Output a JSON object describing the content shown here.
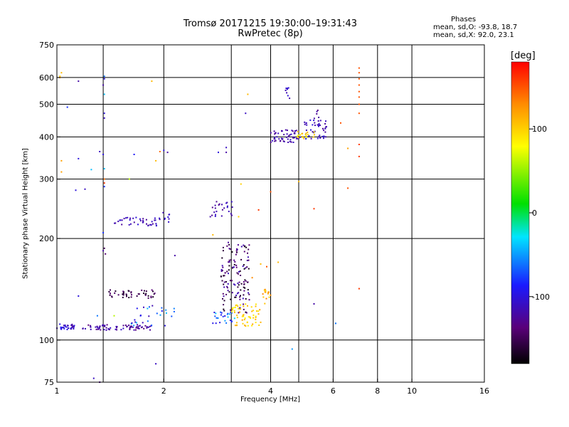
{
  "header": {
    "title_line1": "Tromsø 20171215 19:30:00–19:31:43",
    "title_line2": "RwPretec (8p)",
    "stats_title": "Phases",
    "stats_o": "mean, sd,O: -93.8, 18.7",
    "stats_x": "mean, sd,X:  92.0, 23.1"
  },
  "colorbar": {
    "label": "[deg]",
    "ticks": [
      {
        "value": 100,
        "label": "100"
      },
      {
        "value": 0,
        "label": "0"
      },
      {
        "value": -100,
        "label": "-100"
      }
    ],
    "range": [
      -180,
      180
    ]
  },
  "chart_data": {
    "type": "scatter",
    "xlabel": "Frequency [MHz]",
    "ylabel": "Stationary phase Virtual Height [km]",
    "xscale": "log",
    "yscale": "log",
    "xlim": [
      1,
      16
    ],
    "ylim": [
      75,
      750
    ],
    "xticks": [
      {
        "value": 1,
        "label": "1"
      },
      {
        "value": 2,
        "label": "2"
      },
      {
        "value": 4,
        "label": "4"
      },
      {
        "value": 6,
        "label": "6"
      },
      {
        "value": 8,
        "label": "8"
      },
      {
        "value": 10,
        "label": "10"
      },
      {
        "value": 16,
        "label": "16"
      }
    ],
    "yticks": [
      {
        "value": 75,
        "label": "75"
      },
      {
        "value": 100,
        "label": "100"
      },
      {
        "value": 200,
        "label": "200"
      },
      {
        "value": 300,
        "label": "300"
      },
      {
        "value": 400,
        "label": "400"
      },
      {
        "value": 500,
        "label": "500"
      },
      {
        "value": 600,
        "label": "600"
      },
      {
        "value": 750,
        "label": "750"
      }
    ],
    "grid_x": [
      1.35,
      2,
      3.1,
      4,
      4.8,
      6,
      8,
      10
    ],
    "grid_y": [
      100,
      200,
      300,
      400,
      500,
      600
    ],
    "clusters": [
      {
        "f": [
          1.0,
          1.12
        ],
        "h": [
          107,
          112
        ],
        "n": 30,
        "phase": [
          -125,
          -85
        ]
      },
      {
        "f": [
          1.18,
          1.85
        ],
        "h": [
          107,
          111
        ],
        "n": 75,
        "phase": [
          -140,
          -105
        ]
      },
      {
        "f": [
          1.62,
          2.15
        ],
        "h": [
          110,
          128
        ],
        "n": 25,
        "phase": [
          -120,
          -40
        ]
      },
      {
        "f": [
          1.4,
          1.9
        ],
        "h": [
          133,
          141
        ],
        "n": 45,
        "phase": [
          -170,
          -135
        ]
      },
      {
        "f": [
          1.45,
          1.95
        ],
        "h": [
          218,
          231
        ],
        "n": 40,
        "phase": [
          -130,
          -100
        ]
      },
      {
        "f": [
          1.98,
          2.08
        ],
        "h": [
          222,
          240
        ],
        "n": 8,
        "phase": [
          -120,
          -100
        ]
      },
      {
        "f": [
          2.7,
          3.15
        ],
        "h": [
          232,
          262
        ],
        "n": 25,
        "phase": [
          -130,
          -105
        ]
      },
      {
        "f": [
          2.75,
          3.25
        ],
        "h": [
          112,
          122
        ],
        "n": 25,
        "phase": [
          -100,
          -30
        ]
      },
      {
        "f": [
          2.9,
          3.5
        ],
        "h": [
          120,
          195
        ],
        "n": 130,
        "phase": [
          -175,
          -110
        ]
      },
      {
        "f": [
          3.1,
          3.75
        ],
        "h": [
          110,
          128
        ],
        "n": 60,
        "phase": [
          80,
          120
        ]
      },
      {
        "f": [
          3.8,
          4.0
        ],
        "h": [
          128,
          142
        ],
        "n": 14,
        "phase": [
          90,
          140
        ]
      },
      {
        "f": [
          4.0,
          4.85
        ],
        "h": [
          385,
          420
        ],
        "n": 55,
        "phase": [
          -130,
          -105
        ]
      },
      {
        "f": [
          4.95,
          5.75
        ],
        "h": [
          395,
          450
        ],
        "n": 45,
        "phase": [
          -125,
          -95
        ]
      },
      {
        "f": [
          4.75,
          5.35
        ],
        "h": [
          395,
          415
        ],
        "n": 20,
        "phase": [
          75,
          120
        ]
      },
      {
        "f": [
          4.35,
          4.55
        ],
        "h": [
          520,
          560
        ],
        "n": 8,
        "phase": [
          -120,
          -100
        ]
      },
      {
        "f": [
          5.3,
          5.5
        ],
        "h": [
          450,
          485
        ],
        "n": 5,
        "phase": [
          -140,
          -115
        ]
      }
    ],
    "scattered": [
      {
        "f": 1.03,
        "h": 620,
        "phase": 110
      },
      {
        "f": 1.02,
        "h": 605,
        "phase": 100
      },
      {
        "f": 1.02,
        "h": 600,
        "phase": 130
      },
      {
        "f": 1.15,
        "h": 585,
        "phase": -120
      },
      {
        "f": 1.36,
        "h": 605,
        "phase": -60
      },
      {
        "f": 1.36,
        "h": 595,
        "phase": -100
      },
      {
        "f": 1.35,
        "h": 570,
        "phase": -120
      },
      {
        "f": 1.36,
        "h": 535,
        "phase": -40
      },
      {
        "f": 1.36,
        "h": 470,
        "phase": -100
      },
      {
        "f": 1.36,
        "h": 455,
        "phase": -110
      },
      {
        "f": 1.07,
        "h": 490,
        "phase": -80
      },
      {
        "f": 1.85,
        "h": 585,
        "phase": 110
      },
      {
        "f": 3.45,
        "h": 535,
        "phase": 110
      },
      {
        "f": 3.4,
        "h": 470,
        "phase": -110
      },
      {
        "f": 7.1,
        "h": 640,
        "phase": 150
      },
      {
        "f": 7.1,
        "h": 620,
        "phase": 150
      },
      {
        "f": 7.1,
        "h": 595,
        "phase": 150
      },
      {
        "f": 7.1,
        "h": 570,
        "phase": 150
      },
      {
        "f": 7.1,
        "h": 545,
        "phase": 150
      },
      {
        "f": 7.1,
        "h": 525,
        "phase": 150
      },
      {
        "f": 7.1,
        "h": 500,
        "phase": 150
      },
      {
        "f": 7.1,
        "h": 470,
        "phase": 150
      },
      {
        "f": 7.1,
        "h": 380,
        "phase": 160
      },
      {
        "f": 7.1,
        "h": 350,
        "phase": 160
      },
      {
        "f": 7.1,
        "h": 142,
        "phase": 160
      },
      {
        "f": 6.3,
        "h": 440,
        "phase": 150
      },
      {
        "f": 6.6,
        "h": 370,
        "phase": 120
      },
      {
        "f": 6.6,
        "h": 282,
        "phase": 150
      },
      {
        "f": 5.3,
        "h": 245,
        "phase": 160
      },
      {
        "f": 4.8,
        "h": 295,
        "phase": 110
      },
      {
        "f": 4.0,
        "h": 275,
        "phase": 150
      },
      {
        "f": 3.7,
        "h": 243,
        "phase": 160
      },
      {
        "f": 3.25,
        "h": 232,
        "phase": 100
      },
      {
        "f": 3.3,
        "h": 290,
        "phase": 100
      },
      {
        "f": 2.75,
        "h": 205,
        "phase": 110
      },
      {
        "f": 3.0,
        "h": 372,
        "phase": -110
      },
      {
        "f": 3.0,
        "h": 360,
        "phase": -120
      },
      {
        "f": 2.85,
        "h": 360,
        "phase": -100
      },
      {
        "f": 2.0,
        "h": 365,
        "phase": -100
      },
      {
        "f": 2.05,
        "h": 360,
        "phase": -120
      },
      {
        "f": 1.95,
        "h": 362,
        "phase": 140
      },
      {
        "f": 1.9,
        "h": 340,
        "phase": 110
      },
      {
        "f": 1.65,
        "h": 355,
        "phase": -90
      },
      {
        "f": 1.32,
        "h": 362,
        "phase": -110
      },
      {
        "f": 1.35,
        "h": 355,
        "phase": -100
      },
      {
        "f": 1.36,
        "h": 322,
        "phase": -40
      },
      {
        "f": 1.36,
        "h": 300,
        "phase": 140
      },
      {
        "f": 1.36,
        "h": 292,
        "phase": 160
      },
      {
        "f": 1.36,
        "h": 285,
        "phase": -80
      },
      {
        "f": 1.15,
        "h": 345,
        "phase": -100
      },
      {
        "f": 1.25,
        "h": 320,
        "phase": -40
      },
      {
        "f": 1.13,
        "h": 278,
        "phase": -100
      },
      {
        "f": 1.2,
        "h": 280,
        "phase": -110
      },
      {
        "f": 1.03,
        "h": 340,
        "phase": 120
      },
      {
        "f": 1.03,
        "h": 315,
        "phase": 120
      },
      {
        "f": 1.6,
        "h": 300,
        "phase": 60
      },
      {
        "f": 1.36,
        "h": 187,
        "phase": -150
      },
      {
        "f": 1.35,
        "h": 184,
        "phase": -120
      },
      {
        "f": 1.37,
        "h": 180,
        "phase": -140
      },
      {
        "f": 1.35,
        "h": 208,
        "phase": -80
      },
      {
        "f": 2.15,
        "h": 178,
        "phase": -120
      },
      {
        "f": 1.15,
        "h": 135,
        "phase": -100
      },
      {
        "f": 1.3,
        "h": 118,
        "phase": -60
      },
      {
        "f": 1.9,
        "h": 85,
        "phase": -110
      },
      {
        "f": 1.27,
        "h": 77,
        "phase": -110
      },
      {
        "f": 1.32,
        "h": 75,
        "phase": -130
      },
      {
        "f": 4.6,
        "h": 94,
        "phase": -50
      },
      {
        "f": 5.3,
        "h": 128,
        "phase": -120
      },
      {
        "f": 6.1,
        "h": 112,
        "phase": -60
      },
      {
        "f": 3.55,
        "h": 153,
        "phase": 130
      },
      {
        "f": 3.75,
        "h": 168,
        "phase": 110
      },
      {
        "f": 3.9,
        "h": 165,
        "phase": 150
      },
      {
        "f": 4.2,
        "h": 170,
        "phase": 110
      },
      {
        "f": 1.45,
        "h": 118,
        "phase": 60
      },
      {
        "f": 1.8,
        "h": 124,
        "phase": -40
      },
      {
        "f": 1.72,
        "h": 118,
        "phase": -90
      }
    ]
  }
}
